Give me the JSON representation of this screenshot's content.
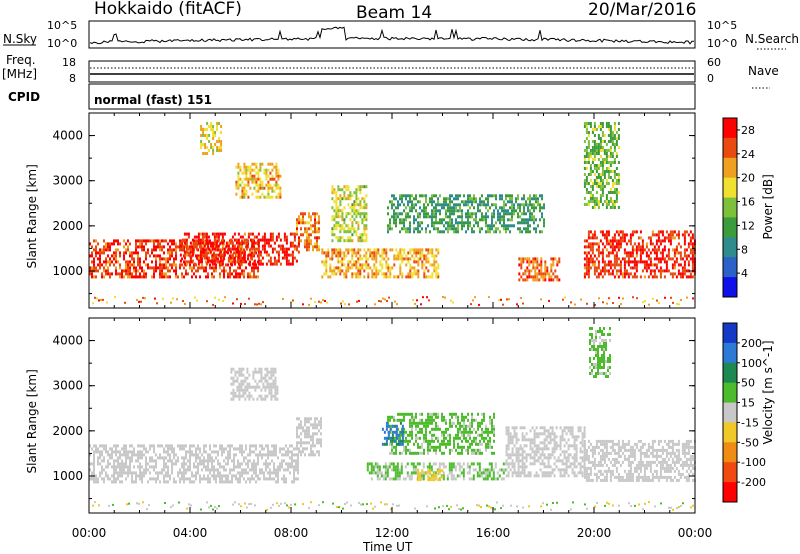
{
  "header": {
    "radar": "Hokkaido (fitACF)",
    "beam": "Beam 14",
    "date": "20/Mar/2016"
  },
  "strip": {
    "nsky_label": "N.Sky",
    "nsky_ticks": [
      "10^5",
      "10^0"
    ],
    "nsky_right_ticks": [
      "10^5",
      "10^0"
    ],
    "nsearch_label": "N.Search",
    "freq_label": "Freq.",
    "freq_unit": "[MHz]",
    "freq_ticks": [
      "18",
      "8"
    ],
    "nave_ticks": [
      "60",
      "0"
    ],
    "nave_label": "Nave",
    "cpid_label": "CPID",
    "cpid_value": "normal (fast) 151"
  },
  "colors": {
    "power": [
      "#1010e8",
      "#2a62c8",
      "#2e8c8c",
      "#3c9c3c",
      "#7cc03c",
      "#f0e030",
      "#f0a020",
      "#e84a10",
      "#ff0000"
    ],
    "velocity": [
      "#1438c8",
      "#2d7ad6",
      "#1c8a50",
      "#4cbc2c",
      "#c8c8c8",
      "#f0c828",
      "#f08c14",
      "#f04a10",
      "#ff0000"
    ]
  },
  "chart_data": [
    {
      "type": "heatmap",
      "panel": "power",
      "title": "",
      "xlabel": "Time UT",
      "ylabel": "Slant Range [km]",
      "xlim": [
        "00:00",
        "24:00"
      ],
      "ylim": [
        180,
        4500
      ],
      "x_ticks": [
        "00:00",
        "04:00",
        "08:00",
        "12:00",
        "16:00",
        "20:00",
        "00:00"
      ],
      "y_ticks": [
        1000,
        2000,
        3000,
        4000
      ],
      "colorbar": {
        "label": "Power [dB]",
        "ticks": [
          4,
          8,
          12,
          16,
          20,
          24,
          28
        ],
        "range": [
          0,
          30
        ]
      },
      "regions": [
        {
          "t0": 0.0,
          "t1": 6.7,
          "r0": 850,
          "r1": 1700,
          "value": 26
        },
        {
          "t0": 3.6,
          "t1": 8.3,
          "r0": 1150,
          "r1": 1850,
          "value": 27
        },
        {
          "t0": 8.2,
          "t1": 9.1,
          "r0": 1500,
          "r1": 2300,
          "value": 23
        },
        {
          "t0": 5.8,
          "t1": 7.6,
          "r0": 2650,
          "r1": 3400,
          "value": 20
        },
        {
          "t0": 9.2,
          "t1": 13.8,
          "r0": 900,
          "r1": 1500,
          "value": 21
        },
        {
          "t0": 9.6,
          "t1": 11.0,
          "r0": 1700,
          "r1": 2900,
          "value": 17
        },
        {
          "t0": 11.8,
          "t1": 18.0,
          "r0": 1900,
          "r1": 2700,
          "value": 11
        },
        {
          "t0": 17.0,
          "t1": 18.6,
          "r0": 800,
          "r1": 1300,
          "value": 24
        },
        {
          "t0": 19.6,
          "t1": 24.0,
          "r0": 900,
          "r1": 1900,
          "value": 27
        },
        {
          "t0": 19.6,
          "t1": 21.0,
          "r0": 2400,
          "r1": 4300,
          "value": 14
        },
        {
          "t0": 4.4,
          "t1": 5.2,
          "r0": 3600,
          "r1": 4300,
          "value": 19
        }
      ]
    },
    {
      "type": "heatmap",
      "panel": "velocity",
      "title": "",
      "xlabel": "Time UT",
      "ylabel": "Slant Range [km]",
      "xlim": [
        "00:00",
        "24:00"
      ],
      "ylim": [
        180,
        4500
      ],
      "x_ticks": [
        "00:00",
        "04:00",
        "08:00",
        "12:00",
        "16:00",
        "20:00",
        "00:00"
      ],
      "y_ticks": [
        1000,
        2000,
        3000,
        4000
      ],
      "colorbar": {
        "label": "Velocity [m s^-1]",
        "ticks": [
          200,
          100,
          50,
          15,
          -15,
          -50,
          -100,
          -200
        ],
        "range": [
          -250,
          250
        ]
      },
      "regions": [
        {
          "t0": 0.0,
          "t1": 8.3,
          "r0": 850,
          "r1": 1700,
          "value": 0
        },
        {
          "t0": 8.2,
          "t1": 9.2,
          "r0": 1500,
          "r1": 2300,
          "value": 0
        },
        {
          "t0": 11.0,
          "t1": 16.5,
          "r0": 950,
          "r1": 1300,
          "value": 30
        },
        {
          "t0": 13.0,
          "t1": 14.0,
          "r0": 950,
          "r1": 1150,
          "value": -60
        },
        {
          "t0": 11.8,
          "t1": 16.0,
          "r0": 1500,
          "r1": 2400,
          "value": 40
        },
        {
          "t0": 11.6,
          "t1": 12.4,
          "r0": 1700,
          "r1": 2200,
          "value": 150
        },
        {
          "t0": 16.5,
          "t1": 19.6,
          "r0": 1000,
          "r1": 2100,
          "value": 0
        },
        {
          "t0": 19.6,
          "t1": 24.0,
          "r0": 900,
          "r1": 1800,
          "value": 0
        },
        {
          "t0": 19.8,
          "t1": 20.6,
          "r0": 3200,
          "r1": 4300,
          "value": 40
        },
        {
          "t0": 5.6,
          "t1": 7.5,
          "r0": 2700,
          "r1": 3400,
          "value": 5
        }
      ]
    }
  ]
}
